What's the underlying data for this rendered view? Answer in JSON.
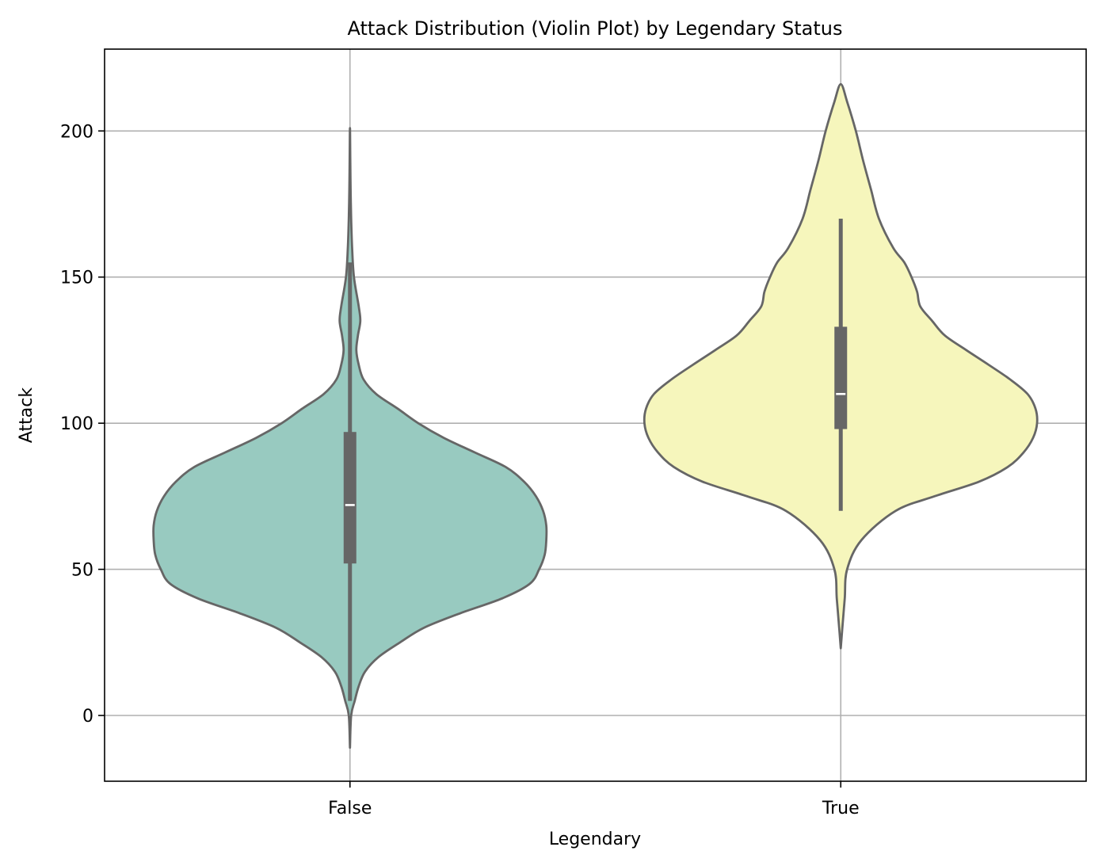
{
  "chart_data": {
    "type": "violin",
    "title": "Attack Distribution (Violin Plot) by Legendary Status",
    "xlabel": "Legendary",
    "ylabel": "Attack",
    "ylim": [
      -22.5,
      228
    ],
    "yticks": [
      0,
      50,
      100,
      150,
      200
    ],
    "grid": true,
    "categories": [
      "False",
      "True"
    ],
    "series": [
      {
        "category": "False",
        "color": "#98cac0",
        "whisker": [
          5,
          155
        ],
        "q1": 52,
        "median": 72,
        "q3": 97,
        "range": [
          -11,
          201
        ],
        "density": [
          [
            -11,
            0.0
          ],
          [
            0,
            1.5
          ],
          [
            5,
            6
          ],
          [
            10,
            11
          ],
          [
            15,
            19
          ],
          [
            20,
            36
          ],
          [
            25,
            63
          ],
          [
            30,
            93
          ],
          [
            35,
            139
          ],
          [
            40,
            191
          ],
          [
            45,
            226
          ],
          [
            50,
            238
          ],
          [
            55,
            245
          ],
          [
            60,
            247
          ],
          [
            65,
            247
          ],
          [
            70,
            243
          ],
          [
            75,
            234
          ],
          [
            80,
            219
          ],
          [
            85,
            196
          ],
          [
            90,
            157
          ],
          [
            95,
            118
          ],
          [
            100,
            86
          ],
          [
            105,
            60
          ],
          [
            110,
            33
          ],
          [
            115,
            17
          ],
          [
            120,
            11
          ],
          [
            125,
            8
          ],
          [
            130,
            10
          ],
          [
            135,
            13
          ],
          [
            140,
            11
          ],
          [
            150,
            5
          ],
          [
            160,
            2.7
          ],
          [
            170,
            1.5
          ],
          [
            180,
            0.8
          ],
          [
            190,
            0.4
          ],
          [
            201,
            0.0
          ]
        ]
      },
      {
        "category": "True",
        "color": "#f6f6bc",
        "whisker": [
          70,
          170
        ],
        "q1": 98,
        "median": 110,
        "q3": 133,
        "range": [
          23,
          216
        ],
        "density": [
          [
            23,
            0.0
          ],
          [
            30,
            2
          ],
          [
            40,
            5
          ],
          [
            50,
            8
          ],
          [
            60,
            26
          ],
          [
            70,
            69
          ],
          [
            75,
            118
          ],
          [
            80,
            174
          ],
          [
            85,
            210
          ],
          [
            90,
            230
          ],
          [
            95,
            242
          ],
          [
            100,
            247
          ],
          [
            105,
            245
          ],
          [
            110,
            235
          ],
          [
            115,
            213
          ],
          [
            120,
            186
          ],
          [
            125,
            158
          ],
          [
            130,
            131
          ],
          [
            135,
            115
          ],
          [
            140,
            100
          ],
          [
            145,
            96
          ],
          [
            150,
            89
          ],
          [
            155,
            80
          ],
          [
            160,
            66
          ],
          [
            170,
            48
          ],
          [
            180,
            38
          ],
          [
            190,
            28
          ],
          [
            200,
            19
          ],
          [
            210,
            8
          ],
          [
            216,
            0.0
          ]
        ]
      }
    ]
  }
}
